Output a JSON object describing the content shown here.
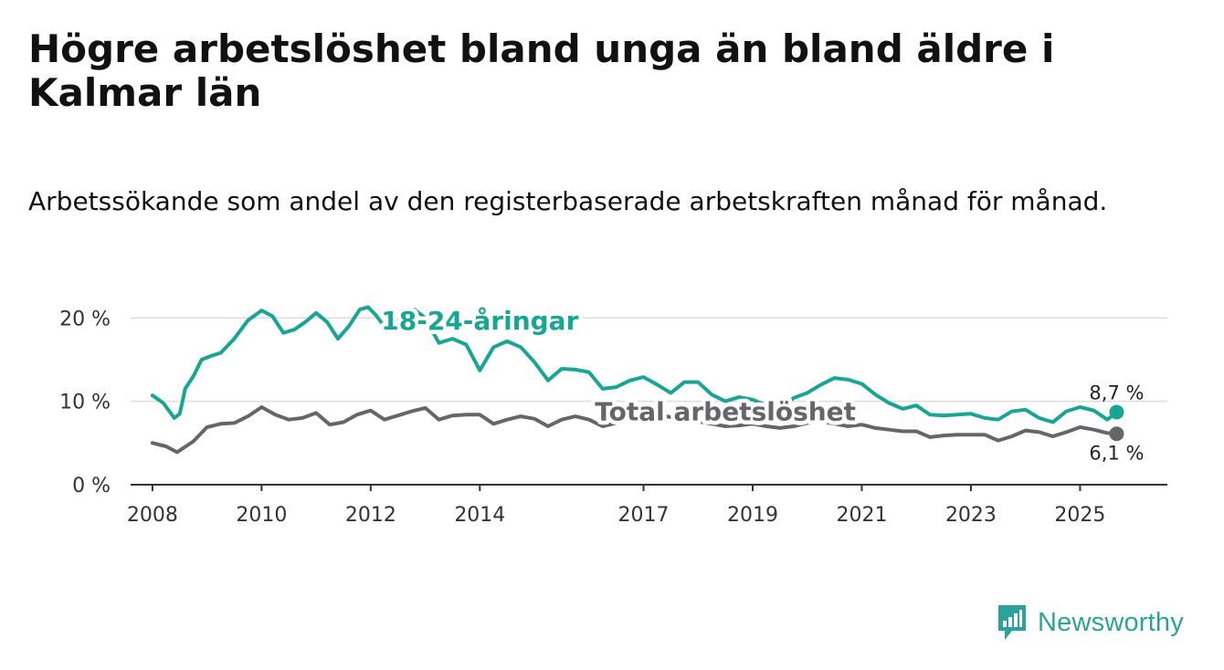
{
  "title": "Högre arbetslöshet bland unga än bland äldre i Kalmar län",
  "subtitle": "Arbetssökande som andel av den registerbaserade arbetskraften månad för månad.",
  "brand": {
    "name": "Newsworthy",
    "icon": "newsworthy-logo-icon",
    "color": "#2ba39b"
  },
  "chart_data": {
    "type": "line",
    "title": "Högre arbetslöshet bland unga än bland äldre i Kalmar län",
    "xlabel": "",
    "ylabel": "",
    "ylim": [
      0,
      22
    ],
    "xlim": [
      2007.6,
      2026.6
    ],
    "yticks": [
      0,
      10,
      20
    ],
    "ytick_labels": [
      "0 %",
      "10 %",
      "20 %"
    ],
    "xticks": [
      2008,
      2010,
      2012,
      2014,
      2017,
      2019,
      2021,
      2023,
      2025
    ],
    "xtick_labels": [
      "2008",
      "2010",
      "2012",
      "2014",
      "2017",
      "2019",
      "2021",
      "2023",
      "2025"
    ],
    "grid": true,
    "series": [
      {
        "name": "18-24-åringar",
        "color": "#17a595",
        "end_label": "8,7 %",
        "x": [
          2008.0,
          2008.2,
          2008.4,
          2008.5,
          2008.6,
          2008.75,
          2008.9,
          2009.1,
          2009.25,
          2009.5,
          2009.75,
          2010.0,
          2010.2,
          2010.4,
          2010.6,
          2010.8,
          2011.0,
          2011.2,
          2011.4,
          2011.6,
          2011.8,
          2011.95,
          2012.1,
          2012.3,
          2012.55,
          2012.8,
          2013.0,
          2013.25,
          2013.5,
          2013.75,
          2014.0,
          2014.25,
          2014.5,
          2014.75,
          2015.0,
          2015.25,
          2015.5,
          2015.75,
          2016.0,
          2016.25,
          2016.5,
          2016.75,
          2017.0,
          2017.25,
          2017.5,
          2017.75,
          2018.0,
          2018.25,
          2018.5,
          2018.75,
          2019.0,
          2019.25,
          2019.5,
          2019.75,
          2020.0,
          2020.25,
          2020.5,
          2020.75,
          2021.0,
          2021.25,
          2021.5,
          2021.75,
          2022.0,
          2022.25,
          2022.5,
          2022.75,
          2023.0,
          2023.25,
          2023.5,
          2023.75,
          2024.0,
          2024.25,
          2024.5,
          2024.75,
          2025.0,
          2025.25,
          2025.5,
          2025.67
        ],
        "values": [
          10.7,
          9.8,
          8.0,
          8.5,
          11.5,
          13.0,
          15.0,
          15.5,
          15.8,
          17.5,
          19.7,
          20.9,
          20.2,
          18.2,
          18.6,
          19.5,
          20.6,
          19.5,
          17.5,
          19.0,
          21.0,
          21.3,
          20.3,
          18.5,
          20.6,
          21.0,
          20.0,
          17.0,
          17.5,
          16.8,
          13.7,
          16.5,
          17.2,
          16.5,
          14.7,
          12.5,
          13.9,
          13.8,
          13.5,
          11.5,
          11.7,
          12.5,
          12.9,
          12.0,
          11.0,
          12.3,
          12.3,
          10.8,
          10.0,
          10.5,
          10.2,
          9.5,
          9.0,
          10.4,
          11.0,
          12.0,
          12.8,
          12.6,
          12.1,
          10.8,
          9.8,
          9.1,
          9.5,
          8.4,
          8.3,
          8.4,
          8.5,
          8.0,
          7.8,
          8.8,
          9.0,
          8.0,
          7.5,
          8.8,
          9.3,
          8.9,
          7.8,
          8.7
        ]
      },
      {
        "name": "Total arbetslöshet",
        "color": "#67656a",
        "end_label": "6,1 %",
        "x": [
          2008.0,
          2008.25,
          2008.45,
          2008.75,
          2009.0,
          2009.25,
          2009.5,
          2009.75,
          2010.0,
          2010.25,
          2010.5,
          2010.75,
          2011.0,
          2011.25,
          2011.5,
          2011.75,
          2012.0,
          2012.25,
          2012.5,
          2012.75,
          2013.0,
          2013.25,
          2013.5,
          2013.75,
          2014.0,
          2014.25,
          2014.5,
          2014.75,
          2015.0,
          2015.25,
          2015.5,
          2015.75,
          2016.0,
          2016.25,
          2016.5,
          2016.75,
          2017.0,
          2017.25,
          2017.5,
          2017.75,
          2018.0,
          2018.25,
          2018.5,
          2018.75,
          2019.0,
          2019.25,
          2019.5,
          2019.75,
          2020.0,
          2020.25,
          2020.5,
          2020.75,
          2021.0,
          2021.25,
          2021.5,
          2021.75,
          2022.0,
          2022.25,
          2022.5,
          2022.75,
          2023.0,
          2023.25,
          2023.5,
          2023.75,
          2024.0,
          2024.25,
          2024.5,
          2024.75,
          2025.0,
          2025.25,
          2025.5,
          2025.67
        ],
        "values": [
          5.0,
          4.6,
          3.9,
          5.2,
          6.9,
          7.3,
          7.4,
          8.2,
          9.3,
          8.4,
          7.8,
          8.0,
          8.6,
          7.2,
          7.5,
          8.4,
          8.9,
          7.8,
          8.3,
          8.8,
          9.2,
          7.8,
          8.3,
          8.4,
          8.4,
          7.3,
          7.8,
          8.2,
          7.9,
          7.0,
          7.8,
          8.2,
          7.8,
          7.0,
          7.4,
          8.0,
          8.6,
          8.4,
          8.1,
          7.8,
          7.6,
          7.3,
          7.0,
          7.1,
          7.3,
          7.0,
          6.8,
          7.0,
          7.4,
          7.6,
          7.3,
          7.0,
          7.2,
          6.8,
          6.6,
          6.4,
          6.4,
          5.7,
          5.9,
          6.0,
          6.0,
          6.0,
          5.3,
          5.8,
          6.5,
          6.3,
          5.8,
          6.3,
          6.9,
          6.6,
          6.2,
          6.1
        ]
      }
    ],
    "annotations": [
      {
        "text": "18-24-åringar",
        "x": 2014.0,
        "y": 18.6,
        "series": "18-24-åringar"
      },
      {
        "text": "Total arbetslöshet",
        "x": 2018.5,
        "y": 7.7,
        "series": "Total arbetslöshet"
      }
    ]
  }
}
